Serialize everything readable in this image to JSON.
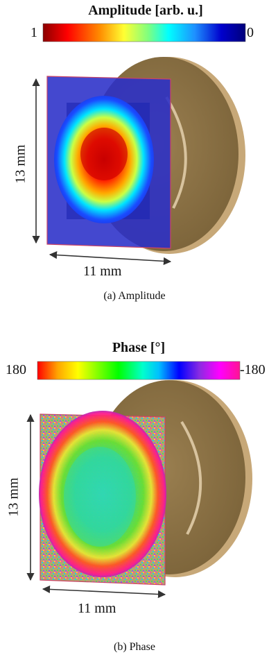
{
  "panel_a": {
    "colorbar_title": "Amplitude [arb. u.]",
    "cb_left": "1",
    "cb_right": "0",
    "height_label": "13 mm",
    "width_label": "11 mm",
    "caption": "(a) Amplitude",
    "colormap": [
      "#8b0000",
      "#ff0000",
      "#ff8c00",
      "#ffff33",
      "#7fff7f",
      "#00ffff",
      "#1e90ff",
      "#0000cd",
      "#00007a"
    ]
  },
  "panel_b": {
    "colorbar_title": "Phase [°]",
    "cb_left": "180",
    "cb_right": "-180",
    "height_label": "13 mm",
    "width_label": "11 mm",
    "caption": "(b) Phase",
    "colormap": [
      "#ff0000",
      "#ffa500",
      "#ffff00",
      "#7fff00",
      "#00ff00",
      "#00ffcc",
      "#00bfff",
      "#0000ff",
      "#8a2be2",
      "#ff00ff",
      "#ff1493"
    ]
  },
  "colors": {
    "disc": "#8d7447",
    "disc_edge": "#c8a978",
    "plane_a": "#2a2fc8",
    "plane_edge": "#cc4466"
  }
}
